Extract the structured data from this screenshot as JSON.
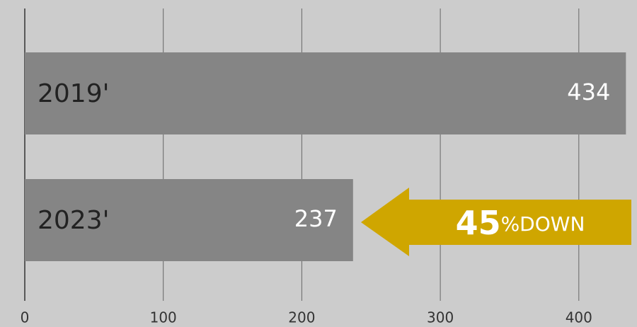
{
  "chart_data": {
    "type": "hbar",
    "categories": [
      "2019'",
      "2023'"
    ],
    "values": [
      434,
      237
    ],
    "color": "#858585",
    "xlim": [
      0,
      442
    ],
    "xticks": [
      0,
      100,
      200,
      300,
      400
    ],
    "grid": true,
    "annotation": {
      "number": "45",
      "unit": "%DOWN",
      "color": "#cfa600"
    }
  }
}
